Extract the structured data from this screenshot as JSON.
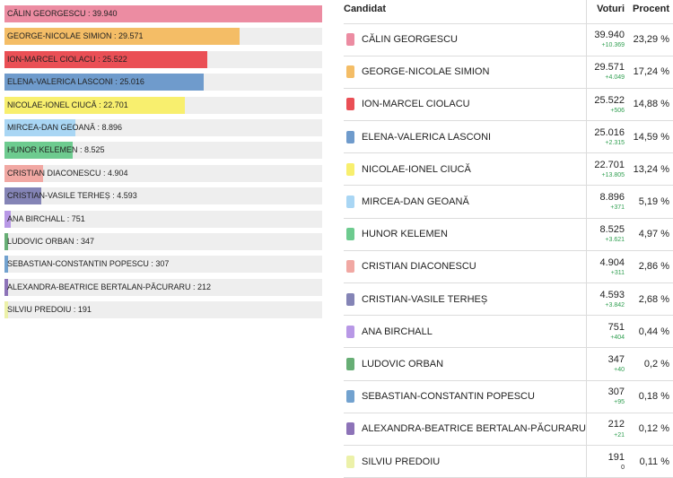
{
  "table": {
    "headers": {
      "candidate": "Candidat",
      "votes": "Voturi",
      "percent": "Procent"
    }
  },
  "chart_data": {
    "type": "bar",
    "orientation": "horizontal",
    "label_separator": " : ",
    "xlim": [
      0,
      39940
    ],
    "grid": false,
    "legend": "none",
    "categories": [
      "CĂLIN GEORGESCU",
      "GEORGE-NICOLAE SIMION",
      "ION-MARCEL CIOLACU",
      "ELENA-VALERICA LASCONI",
      "NICOLAE-IONEL CIUCĂ",
      "MIRCEA-DAN GEOANĂ",
      "HUNOR KELEMEN",
      "CRISTIAN DIACONESCU",
      "CRISTIAN-VASILE TERHEȘ",
      "ANA BIRCHALL",
      "LUDOVIC ORBAN",
      "SEBASTIAN-CONSTANTIN POPESCU",
      "ALEXANDRA-BEATRICE BERTALAN-PĂCURARU",
      "SILVIU PREDOIU"
    ],
    "values": [
      39940,
      29571,
      25522,
      25016,
      22701,
      8896,
      8525,
      4904,
      4593,
      751,
      347,
      307,
      212,
      191
    ],
    "value_labels": [
      "39.940",
      "29.571",
      "25.522",
      "25.016",
      "22.701",
      "8.896",
      "8.525",
      "4.904",
      "4.593",
      "751",
      "347",
      "307",
      "212",
      "191"
    ],
    "deltas": [
      "+10.369",
      "+4.049",
      "+506",
      "+2.315",
      "+13.805",
      "+371",
      "+3.621",
      "+311",
      "+3.842",
      "+404",
      "+40",
      "+95",
      "+21",
      "0"
    ],
    "percents": [
      "23,29 %",
      "17,24 %",
      "14,88 %",
      "14,59 %",
      "13,24 %",
      "5,19 %",
      "4,97 %",
      "2,86 %",
      "2,68 %",
      "0,44 %",
      "0,2 %",
      "0,18 %",
      "0,12 %",
      "0,11 %"
    ],
    "colors": [
      "#ec8ca2",
      "#f4bd66",
      "#ea4f55",
      "#6f9bcc",
      "#f8ef6e",
      "#a9d6f4",
      "#6dcb8f",
      "#f1a8a3",
      "#8484b6",
      "#b898e6",
      "#67ae75",
      "#72a2cf",
      "#8d73b8",
      "#ecf1a9"
    ]
  }
}
